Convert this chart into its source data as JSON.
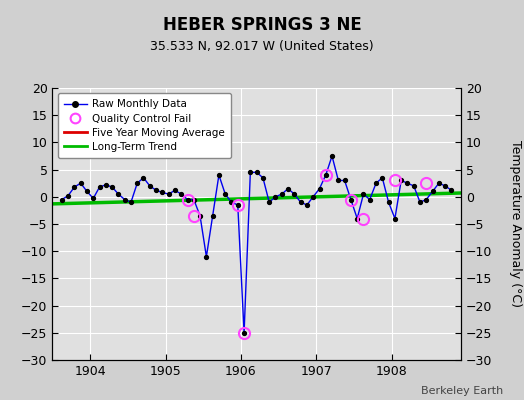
{
  "title": "HEBER SPRINGS 3 NE",
  "subtitle": "35.533 N, 92.017 W (United States)",
  "ylabel": "Temperature Anomaly (°C)",
  "credit": "Berkeley Earth",
  "xlim": [
    1903.5,
    1908.92
  ],
  "ylim": [
    -30,
    20
  ],
  "yticks": [
    -30,
    -25,
    -20,
    -15,
    -10,
    -5,
    0,
    5,
    10,
    15,
    20
  ],
  "xticks": [
    1904,
    1905,
    1906,
    1907,
    1908
  ],
  "bg_color": "#e0e0e0",
  "grid_color": "#ffffff",
  "raw_x": [
    1903.625,
    1903.708,
    1903.792,
    1903.875,
    1903.958,
    1904.042,
    1904.125,
    1904.208,
    1904.292,
    1904.375,
    1904.458,
    1904.542,
    1904.625,
    1904.708,
    1904.792,
    1904.875,
    1904.958,
    1905.042,
    1905.125,
    1905.208,
    1905.292,
    1905.375,
    1905.458,
    1905.542,
    1905.625,
    1905.708,
    1905.792,
    1905.875,
    1905.958,
    1906.042,
    1906.125,
    1906.208,
    1906.292,
    1906.375,
    1906.458,
    1906.542,
    1906.625,
    1906.708,
    1906.792,
    1906.875,
    1906.958,
    1907.042,
    1907.125,
    1907.208,
    1907.292,
    1907.375,
    1907.458,
    1907.542,
    1907.625,
    1907.708,
    1907.792,
    1907.875,
    1907.958,
    1908.042,
    1908.125,
    1908.208,
    1908.292,
    1908.375,
    1908.458,
    1908.542,
    1908.625,
    1908.708,
    1908.792
  ],
  "raw_y": [
    -0.5,
    0.2,
    1.8,
    2.5,
    1.0,
    -0.3,
    1.8,
    2.2,
    1.8,
    0.5,
    -0.5,
    -1.0,
    2.5,
    3.5,
    2.0,
    1.2,
    0.8,
    0.5,
    1.2,
    0.5,
    -0.5,
    -0.5,
    -3.5,
    -11.0,
    -3.5,
    4.0,
    0.5,
    -1.0,
    -1.5,
    -25.0,
    4.5,
    4.5,
    3.5,
    -1.0,
    0.0,
    0.5,
    1.5,
    0.5,
    -1.0,
    -1.5,
    0.0,
    1.5,
    4.0,
    7.5,
    3.0,
    3.0,
    -0.5,
    -4.0,
    0.5,
    -0.5,
    2.5,
    3.5,
    -1.0,
    -4.0,
    3.0,
    2.5,
    2.0,
    -1.0,
    -0.5,
    1.0,
    2.5,
    2.0,
    1.2
  ],
  "qc_fail_x": [
    1905.292,
    1905.375,
    1905.958,
    1906.042,
    1907.125,
    1907.458,
    1907.625,
    1908.042,
    1908.458
  ],
  "qc_fail_y": [
    -0.5,
    -3.5,
    -1.5,
    -25.0,
    4.0,
    -0.5,
    -4.0,
    3.0,
    2.5
  ],
  "trend_x": [
    1903.5,
    1908.92
  ],
  "trend_y": [
    -1.3,
    0.7
  ],
  "line_color": "#0000ee",
  "marker_color": "#000000",
  "qc_color": "#ff44ff",
  "trend_color": "#00bb00",
  "mavg_color": "#dd0000",
  "fig_width": 5.24,
  "fig_height": 4.0,
  "dpi": 100
}
